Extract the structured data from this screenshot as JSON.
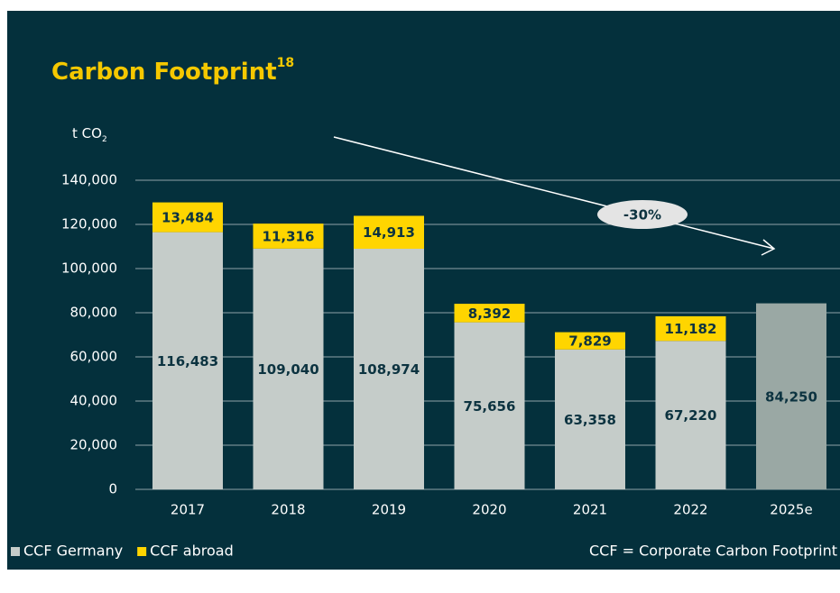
{
  "chart_data": {
    "type": "bar",
    "stacked": true,
    "title": "Carbon Footprint",
    "title_superscript": "18",
    "y_label": "t CO",
    "y_label_subscript": "2",
    "categories": [
      "2017",
      "2018",
      "2019",
      "2020",
      "2021",
      "2022",
      "2025e"
    ],
    "series": [
      {
        "name": "CCF Germany",
        "color": "#c5ccc9",
        "colors": [
          "#c5ccc9",
          "#c5ccc9",
          "#c5ccc9",
          "#c5ccc9",
          "#c5ccc9",
          "#c5ccc9",
          "#9aa8a4"
        ],
        "values": [
          116483,
          109040,
          108974,
          75656,
          63358,
          67220,
          84250
        ],
        "value_labels": [
          "116,483",
          "109,040",
          "108,974",
          "75,656",
          "63,358",
          "67,220",
          "84,250"
        ]
      },
      {
        "name": "CCF abroad",
        "color": "#ffd500",
        "values": [
          13484,
          11316,
          14913,
          8392,
          7829,
          11182,
          null
        ],
        "value_labels": [
          "13,484",
          "11,316",
          "14,913",
          "8,392",
          "7,829",
          "11,182",
          null
        ]
      }
    ],
    "ylim": [
      0,
      140000
    ],
    "yticks": [
      0,
      {
        "value": 20000,
        "label": "20,000"
      },
      {
        "value": 40000,
        "label": "40,000"
      },
      {
        "value": 60000,
        "label": "60,000"
      },
      {
        "value": 80000,
        "label": "80,000"
      },
      {
        "value": 100000,
        "label": "100,000"
      },
      {
        "value": 120000,
        "label": "120,000"
      },
      {
        "value": 140000,
        "label": "140,000"
      }
    ],
    "grid": true,
    "annotation": "-30%",
    "footnote": "CCF = Corporate Carbon Footprint"
  }
}
